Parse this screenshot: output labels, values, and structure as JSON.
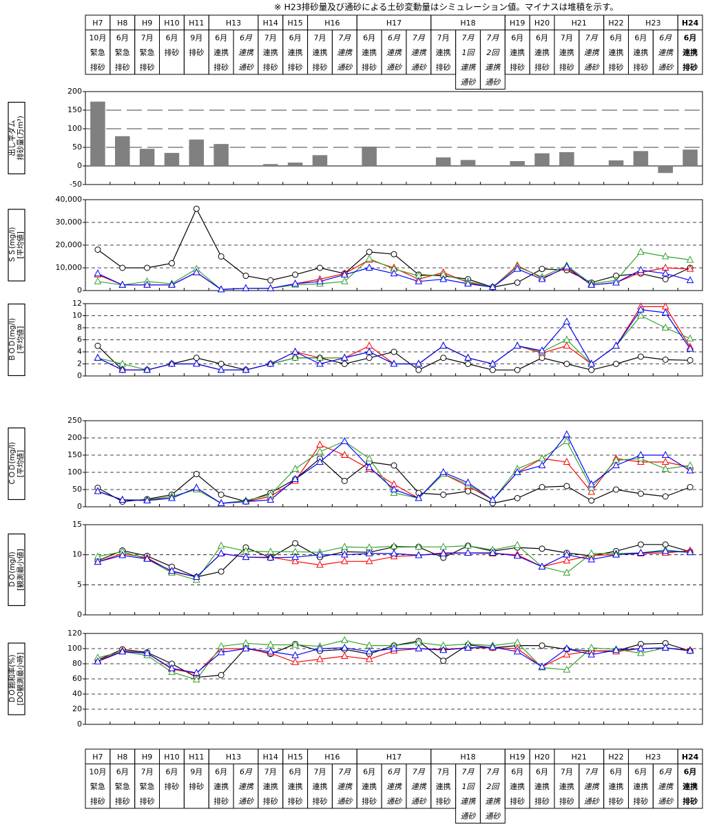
{
  "note": "※ H23排砂量及び通砂による土砂変動量はシミュレーション値。マイナスは堆積を示す。",
  "header": {
    "years": [
      {
        "label": "H7",
        "columns": 1
      },
      {
        "label": "H8",
        "columns": 1
      },
      {
        "label": "H9",
        "columns": 1
      },
      {
        "label": "H10",
        "columns": 1
      },
      {
        "label": "H11",
        "columns": 1
      },
      {
        "label": "H13",
        "columns": 2
      },
      {
        "label": "H14",
        "columns": 1
      },
      {
        "label": "H15",
        "columns": 1
      },
      {
        "label": "H16",
        "columns": 2
      },
      {
        "label": "H17",
        "columns": 3
      },
      {
        "label": "H18",
        "columns": 3
      },
      {
        "label": "H19",
        "columns": 1
      },
      {
        "label": "H20",
        "columns": 1
      },
      {
        "label": "H21",
        "columns": 2
      },
      {
        "label": "H22",
        "columns": 1
      },
      {
        "label": "H23",
        "columns": 2
      },
      {
        "label": "H24",
        "columns": 1,
        "style": "bold"
      }
    ],
    "events": [
      {
        "month": "10月",
        "lines": [
          "緊急",
          "排砂"
        ],
        "style": "normal"
      },
      {
        "month": "6月",
        "lines": [
          "緊急",
          "排砂"
        ],
        "style": "normal"
      },
      {
        "month": "7月",
        "lines": [
          "緊急",
          "排砂"
        ],
        "style": "normal"
      },
      {
        "month": "6月",
        "lines": [
          "排砂"
        ],
        "style": "normal"
      },
      {
        "month": "9月",
        "lines": [
          "排砂"
        ],
        "style": "normal"
      },
      {
        "month": "6月",
        "lines": [
          "連携",
          "排砂"
        ],
        "style": "normal"
      },
      {
        "month": "6月",
        "lines": [
          "連携",
          "通砂"
        ],
        "style": "italic"
      },
      {
        "month": "7月",
        "lines": [
          "連携",
          "排砂"
        ],
        "style": "normal"
      },
      {
        "month": "6月",
        "lines": [
          "連携",
          "排砂"
        ],
        "style": "normal"
      },
      {
        "month": "7月",
        "lines": [
          "連携",
          "排砂"
        ],
        "style": "normal"
      },
      {
        "month": "7月",
        "lines": [
          "連携",
          "通砂"
        ],
        "style": "italic"
      },
      {
        "month": "6月",
        "lines": [
          "連携",
          "排砂"
        ],
        "style": "normal"
      },
      {
        "month": "6月",
        "lines": [
          "連携",
          "通砂"
        ],
        "style": "italic"
      },
      {
        "month": "7月",
        "lines": [
          "連携",
          "通砂"
        ],
        "style": "italic"
      },
      {
        "month": "7月",
        "lines": [
          "連携",
          "排砂"
        ],
        "style": "normal"
      },
      {
        "month": "7月",
        "lines": [
          "1回",
          "連携",
          "通砂"
        ],
        "style": "italic"
      },
      {
        "month": "7月",
        "lines": [
          "2回",
          "連携",
          "通砂"
        ],
        "style": "italic"
      },
      {
        "month": "6月",
        "lines": [
          "連携",
          "排砂"
        ],
        "style": "normal"
      },
      {
        "month": "6月",
        "lines": [
          "連携",
          "排砂"
        ],
        "style": "normal"
      },
      {
        "month": "7月",
        "lines": [
          "連携",
          "排砂"
        ],
        "style": "normal"
      },
      {
        "month": "7月",
        "lines": [
          "連携",
          "通砂"
        ],
        "style": "italic"
      },
      {
        "month": "6月",
        "lines": [
          "連携",
          "排砂"
        ],
        "style": "normal"
      },
      {
        "month": "6月",
        "lines": [
          "連携",
          "排砂"
        ],
        "style": "normal"
      },
      {
        "month": "6月",
        "lines": [
          "連携",
          "通砂"
        ],
        "style": "italic"
      },
      {
        "month": "6月",
        "lines": [
          "連携",
          "排砂"
        ],
        "style": "bold"
      }
    ]
  },
  "chart_data": [
    {
      "type": "bar",
      "y_label": [
        "出し平ダム",
        "排砂量(万m³)"
      ],
      "color": "#808080",
      "values": [
        173,
        80,
        46,
        35,
        71,
        59,
        null,
        5,
        9,
        29,
        null,
        52,
        null,
        null,
        23,
        16,
        null,
        13,
        34,
        37,
        2,
        15,
        40,
        -19,
        44
      ],
      "ylim": [
        -50,
        200
      ],
      "yticks": [
        -50,
        0,
        50,
        100,
        150,
        200
      ],
      "grid": true
    },
    {
      "type": "line",
      "y_label": [
        "ＳＳ(mg/l)",
        "[平均値]"
      ],
      "ylim": [
        0,
        40000
      ],
      "yticks": [
        0,
        {
          "value": 10000,
          "label": "10,000"
        },
        {
          "value": 20000,
          "label": "20,000"
        },
        {
          "value": 30000,
          "label": "30,000"
        },
        {
          "value": 40000,
          "label": "40,000"
        }
      ],
      "grid": true,
      "series": [
        {
          "color": "#000000",
          "marker": "circle",
          "values": [
            18000,
            10000,
            10000,
            12000,
            36000,
            15000,
            6500,
            4500,
            7000,
            10000,
            7500,
            17000,
            16000,
            7000,
            6500,
            5000,
            1500,
            3500,
            9500,
            9000,
            3500,
            6500,
            7500,
            5000,
            10000
          ]
        },
        {
          "color": "#ff0000",
          "marker": "triangle",
          "values": [
            7000,
            2500,
            2500,
            2500,
            8000,
            500,
            1000,
            1000,
            3000,
            5000,
            7500,
            13500,
            10000,
            5000,
            8000,
            3500,
            1500,
            11000,
            5500,
            10000,
            2500,
            3500,
            8000,
            10000,
            9500
          ]
        },
        {
          "color": "#33a02c",
          "marker": "triangle",
          "values": [
            4000,
            2500,
            4000,
            3000,
            9500,
            500,
            1000,
            1000,
            2500,
            3000,
            4000,
            14000,
            9500,
            6500,
            7000,
            4000,
            1500,
            10500,
            6000,
            11000,
            3000,
            4500,
            17000,
            15000,
            13500
          ]
        },
        {
          "color": "#0000ff",
          "marker": "triangle",
          "values": [
            7500,
            2500,
            2500,
            2500,
            8000,
            500,
            1000,
            1000,
            3000,
            4000,
            7000,
            10000,
            7500,
            4000,
            5000,
            3000,
            1500,
            9500,
            5000,
            10500,
            2500,
            3500,
            9000,
            7500,
            4500
          ]
        }
      ]
    },
    {
      "type": "line",
      "y_label": [
        "ＢＯＤ(mg/l)",
        "[平均値]"
      ],
      "ylim": [
        0,
        12
      ],
      "yticks": [
        0,
        2,
        4,
        6,
        8,
        10,
        12
      ],
      "grid": true,
      "series": [
        {
          "color": "#000000",
          "marker": "circle",
          "values": [
            5,
            1,
            1,
            2,
            3,
            2,
            1,
            2,
            3,
            3,
            2,
            3,
            4,
            1,
            3,
            2,
            1,
            1,
            3,
            2,
            1,
            2,
            3.2,
            2.7,
            2.6
          ]
        },
        {
          "color": "#ff0000",
          "marker": "triangle",
          "values": [
            3,
            1,
            1,
            2,
            2,
            1,
            1,
            2,
            4,
            3,
            3,
            5,
            2,
            2,
            5,
            3,
            2,
            5,
            3.8,
            5,
            2,
            5,
            11.5,
            11.5,
            4.8
          ]
        },
        {
          "color": "#33a02c",
          "marker": "triangle",
          "values": [
            3,
            2,
            1,
            2,
            2,
            1,
            1,
            2,
            3,
            3,
            3,
            4,
            2,
            2,
            5,
            3,
            2,
            5,
            4,
            6,
            2,
            5,
            10,
            8,
            6.2
          ]
        },
        {
          "color": "#0000ff",
          "marker": "triangle",
          "values": [
            3,
            1,
            1,
            2,
            2,
            1,
            1,
            2,
            4,
            2,
            3,
            4,
            2,
            2,
            5,
            3,
            2,
            5,
            4.2,
            9,
            2,
            5,
            11,
            10.5,
            4.5
          ]
        }
      ]
    },
    {
      "type": "line",
      "y_label": [
        "ＣＯＤ(mg/l)",
        "[平均値]"
      ],
      "ylim": [
        0,
        250
      ],
      "yticks": [
        0,
        50,
        100,
        150,
        200,
        250
      ],
      "grid": true,
      "series": [
        {
          "color": "#000000",
          "marker": "circle",
          "values": [
            55,
            15,
            22,
            35,
            95,
            35,
            15,
            40,
            80,
            140,
            75,
            130,
            120,
            40,
            35,
            45,
            10,
            25,
            57,
            60,
            18,
            50,
            38,
            30,
            57
          ]
        },
        {
          "color": "#ff0000",
          "marker": "triangle",
          "values": [
            45,
            20,
            20,
            25,
            55,
            10,
            15,
            30,
            75,
            180,
            150,
            110,
            65,
            25,
            95,
            60,
            20,
            100,
            140,
            130,
            43,
            140,
            130,
            130,
            115
          ]
        },
        {
          "color": "#33a02c",
          "marker": "triangle",
          "values": [
            45,
            20,
            20,
            30,
            50,
            10,
            18,
            35,
            110,
            160,
            190,
            140,
            40,
            25,
            95,
            65,
            20,
            110,
            140,
            190,
            55,
            135,
            140,
            110,
            120
          ]
        },
        {
          "color": "#0000ff",
          "marker": "triangle",
          "values": [
            45,
            20,
            18,
            25,
            55,
            10,
            15,
            20,
            80,
            130,
            190,
            115,
            50,
            25,
            100,
            70,
            20,
            100,
            120,
            210,
            65,
            120,
            150,
            150,
            105
          ]
        }
      ]
    },
    {
      "type": "line",
      "y_label": [
        "ＤＯ(mg/l)",
        "[観測最小値]"
      ],
      "ylim": [
        0,
        15
      ],
      "yticks": [
        0,
        5,
        10,
        15
      ],
      "grid": true,
      "series": [
        {
          "color": "#000000",
          "marker": "circle",
          "values": [
            9,
            10.7,
            9.8,
            8,
            6.3,
            7.2,
            11.2,
            9.5,
            11.9,
            9.6,
            10.5,
            10.4,
            11.3,
            11.3,
            9.5,
            11.5,
            10.6,
            11.2,
            11,
            10.3,
            9.8,
            10.6,
            11.7,
            11.7,
            10.5
          ]
        },
        {
          "color": "#ff0000",
          "marker": "triangle",
          "values": [
            8.8,
            10.2,
            9.5,
            7.2,
            6.3,
            10.2,
            9.6,
            9.6,
            8.9,
            8.3,
            8.9,
            8.9,
            9.7,
            9.9,
            10.3,
            10.3,
            10.2,
            10,
            8,
            9,
            9.9,
            10,
            10.2,
            10.3,
            10.7
          ]
        },
        {
          "color": "#33a02c",
          "marker": "triangle",
          "values": [
            9.7,
            10.5,
            9.3,
            7,
            5.8,
            11.5,
            10.6,
            10.5,
            10.5,
            10.4,
            11.3,
            11.2,
            11.4,
            11.3,
            11.3,
            11.5,
            10.8,
            11.6,
            8,
            7,
            10.2,
            10.2,
            10.3,
            10.8,
            10.4
          ]
        },
        {
          "color": "#0000ff",
          "marker": "triangle",
          "values": [
            8.8,
            9.9,
            9.3,
            7.3,
            6.3,
            10.2,
            9.6,
            9.5,
            9.6,
            10,
            10,
            10.2,
            10.2,
            9.9,
            10.2,
            10.3,
            10.3,
            9.8,
            8,
            10,
            9.2,
            10,
            10.3,
            10.6,
            10.4
          ]
        }
      ]
    },
    {
      "type": "line",
      "y_label": [
        "ＤＯ飽和率(%)",
        "[DO観測最小時]"
      ],
      "ylim": [
        0,
        120
      ],
      "yticks": [
        0,
        20,
        40,
        60,
        80,
        100,
        120
      ],
      "grid": true,
      "series": [
        {
          "color": "#000000",
          "marker": "circle",
          "values": [
            85,
            99,
            95,
            80,
            62,
            65,
            101,
            93,
            106,
            97,
            99,
            93,
            104,
            110,
            84,
            105,
            101,
            104,
            104,
            99,
            97,
            97,
            106,
            107,
            97
          ]
        },
        {
          "color": "#ff0000",
          "marker": "triangle",
          "values": [
            84,
            97,
            94,
            73,
            67,
            100,
            100,
            94,
            82,
            86,
            90,
            86,
            97,
            100,
            99,
            101,
            101,
            100,
            76,
            92,
            97,
            96,
            100,
            101,
            98
          ]
        },
        {
          "color": "#33a02c",
          "marker": "triangle",
          "values": [
            88,
            96,
            91,
            69,
            59,
            103,
            107,
            105,
            105,
            103,
            111,
            104,
            104,
            108,
            104,
            106,
            104,
            108,
            75,
            72,
            101,
            99,
            94,
            101,
            97
          ]
        },
        {
          "color": "#0000ff",
          "marker": "triangle",
          "values": [
            83,
            96,
            94,
            74,
            68,
            95,
            100,
            96,
            91,
            100,
            101,
            96,
            100,
            100,
            98,
            101,
            102,
            96,
            76,
            100,
            92,
            98,
            100,
            101,
            97
          ]
        }
      ]
    }
  ]
}
